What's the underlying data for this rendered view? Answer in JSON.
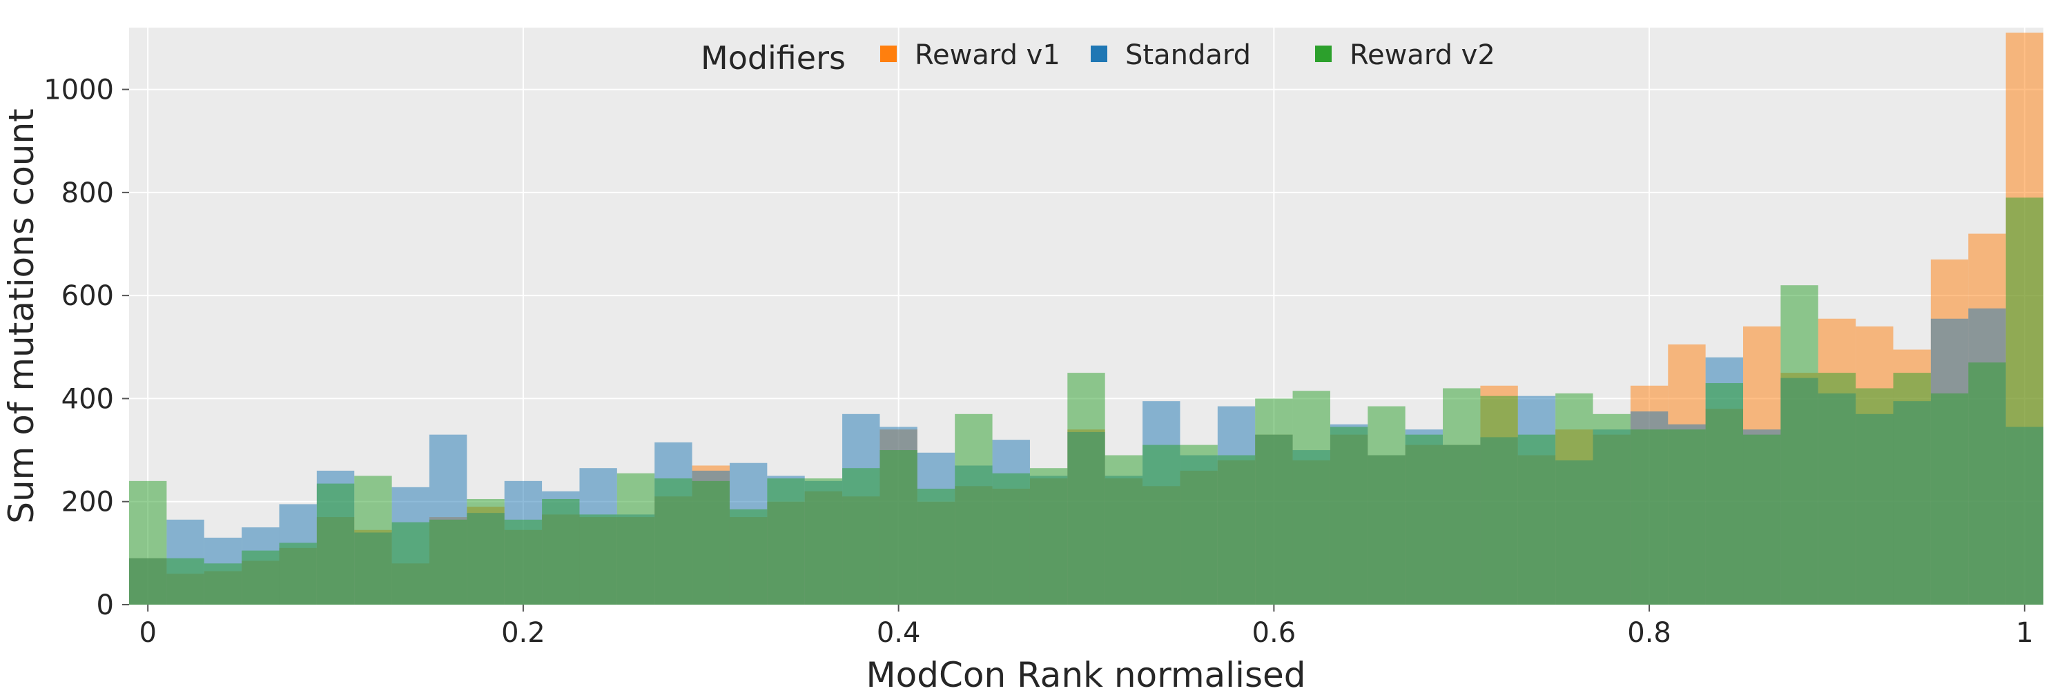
{
  "chart_data": {
    "type": "bar",
    "subtype": "overlaid-histogram",
    "title": "",
    "xlabel": "ModCon Rank normalised",
    "ylabel": "Sum of mutations count",
    "xlim": [
      -0.01,
      1.01
    ],
    "ylim": [
      0,
      1120
    ],
    "bin_width": 0.02,
    "grid": true,
    "legend_position": "top-center",
    "legend_title": "Modifiers",
    "x_ticks": [
      0,
      0.2,
      0.4,
      0.6,
      0.8,
      1
    ],
    "x_tick_labels": [
      "0",
      "0.2",
      "0.4",
      "0.6",
      "0.8",
      "1"
    ],
    "y_ticks": [
      0,
      200,
      400,
      600,
      800,
      1000
    ],
    "y_tick_labels": [
      "0",
      "200",
      "400",
      "600",
      "800",
      "1000"
    ],
    "bin_starts": [
      -0.01,
      0.01,
      0.03,
      0.05,
      0.07,
      0.09,
      0.11,
      0.13,
      0.15,
      0.17,
      0.19,
      0.21,
      0.23,
      0.25,
      0.27,
      0.29,
      0.31,
      0.33,
      0.35,
      0.37,
      0.39,
      0.41,
      0.43,
      0.45,
      0.47,
      0.49,
      0.51,
      0.53,
      0.55,
      0.57,
      0.59,
      0.61,
      0.63,
      0.65,
      0.67,
      0.69,
      0.71,
      0.73,
      0.75,
      0.77,
      0.79,
      0.81,
      0.83,
      0.85,
      0.87,
      0.89,
      0.91,
      0.93,
      0.95,
      0.97,
      0.99
    ],
    "series": [
      {
        "name": "Reward v1",
        "color": "#ff7f0e",
        "values": [
          90,
          60,
          65,
          85,
          110,
          170,
          145,
          80,
          170,
          190,
          145,
          175,
          170,
          170,
          210,
          270,
          170,
          200,
          220,
          210,
          340,
          200,
          230,
          225,
          245,
          340,
          245,
          230,
          260,
          280,
          330,
          280,
          330,
          290,
          310,
          310,
          425,
          290,
          340,
          330,
          425,
          505,
          380,
          540,
          450,
          555,
          540,
          495,
          670,
          720,
          1110
        ]
      },
      {
        "name": "Standard",
        "color": "#1f77b4",
        "values": [
          90,
          165,
          130,
          150,
          195,
          260,
          140,
          228,
          330,
          178,
          240,
          220,
          265,
          175,
          315,
          260,
          275,
          250,
          240,
          370,
          345,
          295,
          270,
          320,
          250,
          335,
          250,
          395,
          290,
          385,
          330,
          300,
          350,
          290,
          340,
          310,
          325,
          405,
          280,
          340,
          375,
          350,
          480,
          340,
          440,
          410,
          370,
          395,
          555,
          575,
          345
        ]
      },
      {
        "name": "Reward v2",
        "color": "#2ca02c",
        "values": [
          240,
          90,
          80,
          105,
          120,
          235,
          250,
          160,
          165,
          205,
          165,
          205,
          175,
          255,
          245,
          240,
          185,
          245,
          245,
          265,
          300,
          225,
          370,
          255,
          265,
          450,
          290,
          310,
          310,
          290,
          400,
          415,
          345,
          385,
          330,
          420,
          405,
          330,
          410,
          370,
          340,
          340,
          430,
          330,
          620,
          450,
          420,
          450,
          410,
          470,
          790
        ]
      }
    ]
  }
}
